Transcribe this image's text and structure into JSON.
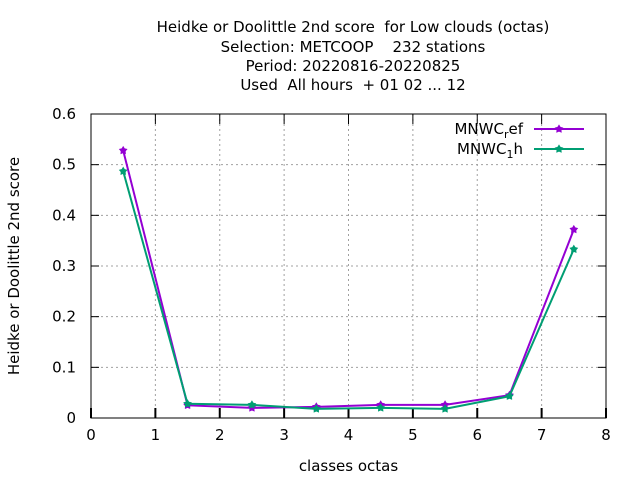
{
  "chart_data": {
    "type": "line",
    "title_lines": [
      "Heidke or Doolittle 2nd score  for Low clouds (octas)",
      "Selection: METCOOP    232 stations",
      "Period: 20220816-20220825",
      "Used  All hours  + 01 02 ... 12"
    ],
    "xlabel": "classes octas",
    "ylabel": "Heidke or Doolittle 2nd score",
    "xlim": [
      0,
      8
    ],
    "ylim": [
      0,
      0.6
    ],
    "xticks": [
      "0",
      "1",
      "2",
      "3",
      "4",
      "5",
      "6",
      "7",
      "8"
    ],
    "yticks": [
      "0",
      "0.1",
      "0.2",
      "0.3",
      "0.4",
      "0.5",
      "0.6"
    ],
    "grid": true,
    "legend_position": "top-right",
    "series": [
      {
        "name": "MNWC_ref",
        "legend_base": "MNWC",
        "legend_sub": "r",
        "legend_tail": "ef",
        "color": "#9400d3",
        "x": [
          0.5,
          1.5,
          2.5,
          3.5,
          4.5,
          5.5,
          6.5,
          7.5
        ],
        "y": [
          0.528,
          0.025,
          0.02,
          0.022,
          0.026,
          0.026,
          0.045,
          0.372
        ]
      },
      {
        "name": "MNWC_1h",
        "legend_base": "MNWC",
        "legend_sub": "1",
        "legend_tail": "h",
        "color": "#009e73",
        "x": [
          0.5,
          1.5,
          2.5,
          3.5,
          4.5,
          5.5,
          6.5,
          7.5
        ],
        "y": [
          0.487,
          0.028,
          0.026,
          0.018,
          0.02,
          0.018,
          0.043,
          0.333
        ]
      }
    ]
  }
}
